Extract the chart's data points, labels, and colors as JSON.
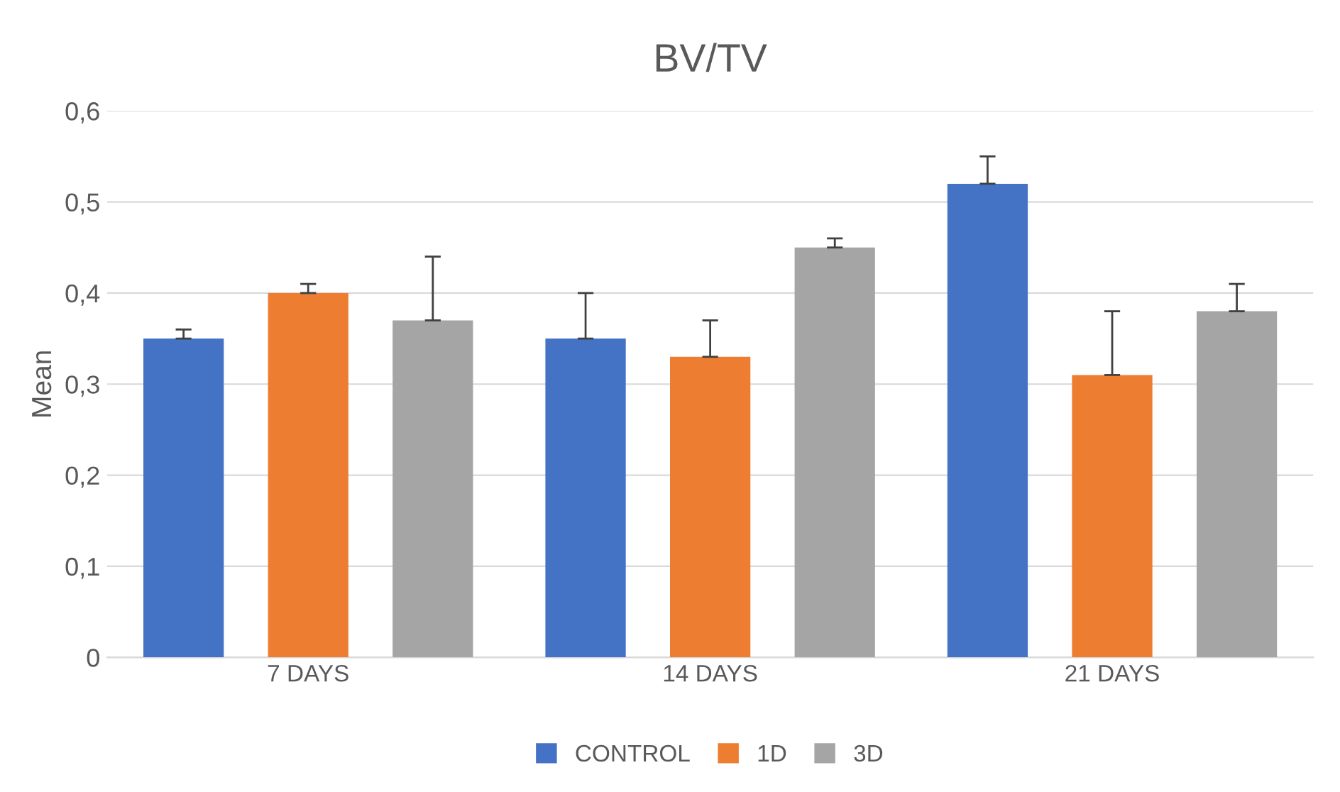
{
  "chart_data": {
    "type": "bar",
    "title": "BV/TV",
    "ylabel": "Mean",
    "categories": [
      "7 DAYS",
      "14 DAYS",
      "21 DAYS"
    ],
    "series": [
      {
        "name": "CONTROL",
        "color": "#4472c4",
        "values": [
          0.35,
          0.35,
          0.52
        ],
        "errors": [
          [
            0.35,
            0.36
          ],
          [
            0.35,
            0.4
          ],
          [
            0.52,
            0.55
          ]
        ]
      },
      {
        "name": "1D",
        "color": "#ed7d31",
        "values": [
          0.4,
          0.33,
          0.31
        ],
        "errors": [
          [
            0.4,
            0.41
          ],
          [
            0.33,
            0.37
          ],
          [
            0.31,
            0.38
          ]
        ]
      },
      {
        "name": "3D",
        "color": "#a5a5a5",
        "values": [
          0.37,
          0.45,
          0.38
        ],
        "errors": [
          [
            0.37,
            0.44
          ],
          [
            0.45,
            0.46
          ],
          [
            0.38,
            0.41
          ]
        ]
      }
    ],
    "ylim": [
      0,
      0.6
    ],
    "yticks": [
      0,
      {
        "value": 0.1,
        "label": "0,1"
      },
      {
        "value": 0.2,
        "label": "0,2"
      },
      {
        "value": 0.3,
        "label": "0,3"
      },
      {
        "value": 0.4,
        "label": "0,4"
      },
      {
        "value": 0.5,
        "label": "0,5"
      },
      {
        "value": 0.6,
        "label": "0,6"
      }
    ],
    "grid": "y",
    "legend": "bottom"
  }
}
